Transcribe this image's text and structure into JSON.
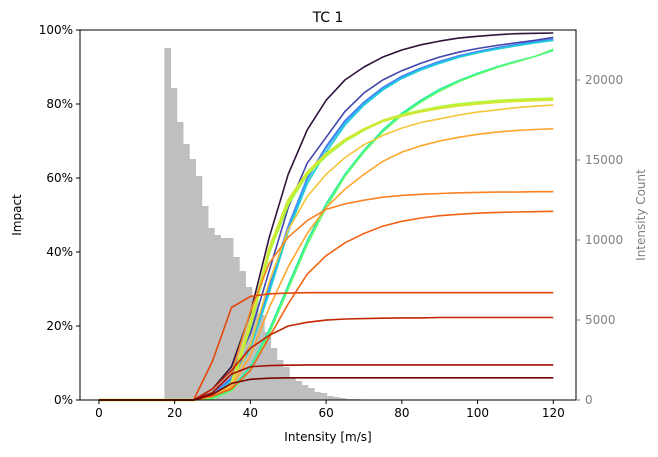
{
  "chart_data": {
    "type": "line",
    "title": "TC 1",
    "xlabel": "Intensity [m/s]",
    "ylabel": "Impact",
    "y2label": "Intensity Count",
    "xlim": [
      -5,
      126
    ],
    "ylim": [
      0,
      100
    ],
    "y2lim": [
      0,
      23125
    ],
    "xticks": [
      0,
      20,
      40,
      60,
      80,
      100,
      120
    ],
    "xtick_labels": [
      "0",
      "20",
      "40",
      "60",
      "80",
      "100",
      "120"
    ],
    "yticks": [
      0,
      20,
      40,
      60,
      80,
      100
    ],
    "ytick_labels": [
      "0%",
      "20%",
      "40%",
      "60%",
      "80%",
      "100%"
    ],
    "y2ticks": [
      0,
      5000,
      10000,
      15000,
      20000
    ],
    "y2tick_labels": [
      "0",
      "5000",
      "10000",
      "15000",
      "20000"
    ],
    "grid": false,
    "histogram": {
      "color": "#bfbfbf",
      "bin_start": 17.3,
      "bin_width": 1.65,
      "counts": [
        22000,
        19500,
        17375,
        16000,
        15063,
        14000,
        12125,
        10750,
        10312,
        10125,
        10125,
        8937,
        8062,
        7062,
        6437,
        5312,
        4250,
        3250,
        2500,
        2062,
        1437,
        1187,
        937,
        750,
        500,
        437,
        250,
        187,
        125,
        62,
        50,
        40,
        30,
        20,
        10,
        5
      ]
    },
    "x": [
      0,
      5,
      10,
      15,
      20,
      25,
      30,
      35,
      40,
      45,
      50,
      55,
      60,
      65,
      70,
      75,
      80,
      85,
      90,
      95,
      100,
      105,
      110,
      115,
      120
    ],
    "series": [
      {
        "color": "#30123b",
        "values": [
          0,
          0,
          0,
          0,
          0,
          0,
          3,
          9,
          23.5,
          44,
          61,
          73,
          81,
          86.5,
          90,
          92.7,
          94.6,
          96,
          97,
          97.8,
          98.3,
          98.7,
          99,
          99.1,
          99.2
        ]
      },
      {
        "color": "#4145ab",
        "values": [
          0,
          0,
          0,
          0,
          0,
          0,
          2,
          7,
          18,
          35,
          52,
          64,
          71,
          78,
          83,
          86.5,
          89,
          91,
          92.7,
          94,
          95,
          95.8,
          96.5,
          97.2,
          98
        ]
      },
      {
        "color": "#4675ed",
        "values": [
          0,
          0,
          0,
          0,
          0,
          0,
          1.5,
          6,
          15,
          31,
          47,
          60,
          68.5,
          75.5,
          80.5,
          84.5,
          87.5,
          89.7,
          91.5,
          93,
          94.2,
          95.2,
          96,
          96.8,
          97.5
        ]
      },
      {
        "color": "#39a2fc",
        "values": [
          0,
          0,
          0,
          0,
          0,
          0,
          1.2,
          5.5,
          14.5,
          30,
          46.5,
          59.5,
          68,
          75,
          80.2,
          84.2,
          87.2,
          89.5,
          91.3,
          92.8,
          94,
          95,
          95.8,
          96.6,
          97.3
        ]
      },
      {
        "color": "#1bcfd4",
        "values": [
          0,
          0,
          0,
          0,
          0,
          0,
          1,
          5,
          14,
          29,
          45.5,
          58.5,
          67,
          74.3,
          79.7,
          83.8,
          86.9,
          89.2,
          91,
          92.6,
          93.8,
          94.8,
          95.7,
          96.5,
          97.2
        ]
      },
      {
        "color": "#24eca6",
        "values": [
          0,
          0,
          0,
          0,
          0,
          0,
          0.5,
          3,
          9,
          19,
          31,
          43,
          53,
          61,
          67.5,
          73,
          77.5,
          81,
          84,
          86.3,
          88.3,
          90,
          91.5,
          92.8,
          94.5
        ]
      },
      {
        "color": "#61fc6c",
        "values": [
          0,
          0,
          0,
          0,
          0,
          0,
          0.3,
          2.5,
          8,
          18,
          30,
          42,
          52,
          60.5,
          67,
          72.5,
          77,
          80.5,
          83.5,
          86,
          88,
          89.8,
          91.3,
          92.8,
          94.8
        ]
      },
      {
        "color": "#a4fc3b",
        "values": [
          0,
          0,
          0,
          0,
          0,
          0,
          1,
          4,
          20,
          40,
          53,
          61,
          66,
          70,
          73,
          75.5,
          77,
          78.2,
          79.2,
          79.9,
          80.4,
          80.8,
          81.1,
          81.3,
          81.5
        ]
      },
      {
        "color": "#d1e834",
        "values": [
          0,
          0,
          0,
          0,
          0,
          0,
          1,
          4.5,
          21,
          41,
          54,
          61.5,
          66.5,
          70.3,
          73.2,
          75.4,
          76.8,
          78,
          78.9,
          79.6,
          80.1,
          80.5,
          80.8,
          81,
          81.2
        ]
      },
      {
        "color": "#f3c63a",
        "values": [
          0,
          0,
          0,
          0,
          0,
          0,
          1,
          4,
          15,
          32,
          46,
          55,
          61,
          65.5,
          69,
          71.5,
          73.5,
          75,
          76,
          77,
          77.8,
          78.4,
          79,
          79.4,
          79.7
        ]
      },
      {
        "color": "#fea52e",
        "values": [
          0,
          0,
          0,
          0,
          0,
          0,
          1,
          3.5,
          12,
          25,
          36,
          45,
          52,
          57,
          61,
          64.5,
          67,
          68.7,
          70,
          71,
          71.8,
          72.4,
          72.8,
          73.1,
          73.3
        ]
      },
      {
        "color": "#fb8022",
        "values": [
          0,
          0,
          0,
          0,
          0,
          0,
          2,
          7,
          24,
          37,
          44,
          48.5,
          51.5,
          53,
          54,
          54.8,
          55.3,
          55.6,
          55.8,
          56,
          56.1,
          56.2,
          56.2,
          56.3,
          56.3
        ]
      },
      {
        "color": "#f36315",
        "values": [
          0,
          0,
          0,
          0,
          0,
          0,
          1,
          3,
          8,
          17,
          26,
          34,
          39,
          42.5,
          45,
          47,
          48.3,
          49.2,
          49.8,
          50.2,
          50.5,
          50.7,
          50.8,
          50.9,
          51
        ]
      },
      {
        "color": "#e4460a",
        "values": [
          0,
          0,
          0,
          0,
          0,
          0,
          10.5,
          25,
          28,
          28.7,
          28.9,
          29,
          29,
          29,
          29,
          29,
          29,
          29,
          29,
          29,
          29,
          29,
          29,
          29,
          29
        ]
      },
      {
        "color": "#c42503",
        "values": [
          0,
          0,
          0,
          0,
          0,
          0,
          3,
          8,
          14,
          17.5,
          20,
          21,
          21.6,
          21.9,
          22,
          22.1,
          22.2,
          22.2,
          22.3,
          22.3,
          22.3,
          22.3,
          22.3,
          22.3,
          22.3
        ]
      },
      {
        "color": "#a01101",
        "values": [
          0,
          0,
          0,
          0,
          0,
          0,
          2,
          7,
          9,
          9.3,
          9.4,
          9.5,
          9.5,
          9.5,
          9.5,
          9.5,
          9.5,
          9.5,
          9.5,
          9.5,
          9.5,
          9.5,
          9.5,
          9.5,
          9.5
        ]
      },
      {
        "color": "#7a0403",
        "values": [
          0,
          0,
          0,
          0,
          0,
          0,
          1.5,
          4.5,
          5.6,
          5.9,
          6,
          6,
          6,
          6,
          6,
          6,
          6,
          6,
          6,
          6,
          6,
          6,
          6,
          6,
          6
        ]
      }
    ]
  }
}
